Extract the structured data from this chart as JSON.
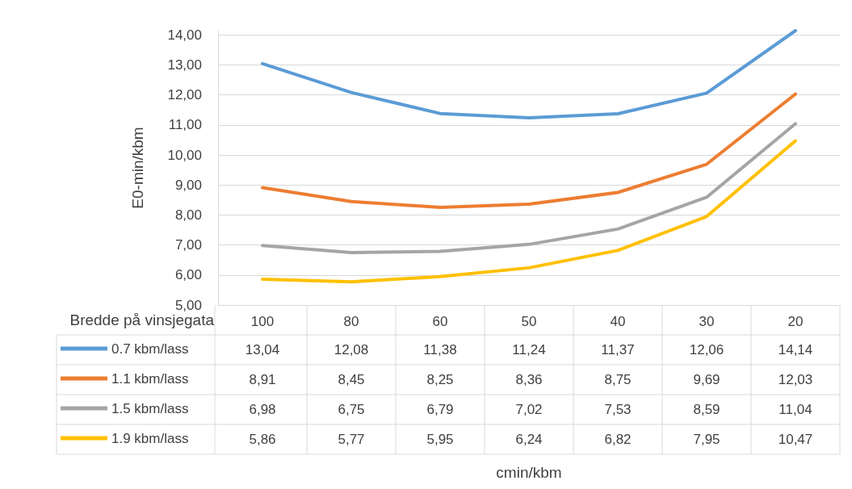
{
  "chart_data": {
    "type": "line",
    "annotations": [
      "cmin/kbm"
    ],
    "ylabel": "E0-min/kbm",
    "legend_title": "Bredde på vinsjegata",
    "categories": [
      "100",
      "80",
      "60",
      "50",
      "40",
      "30",
      "20"
    ],
    "series": [
      {
        "name": "0.7 kbm/lass",
        "color": "#5b9bd5",
        "values": [
          13.04,
          12.08,
          11.38,
          11.24,
          11.37,
          12.06,
          14.14
        ],
        "value_labels": [
          "13,04",
          "12,08",
          "11,38",
          "11,24",
          "11,37",
          "12,06",
          "14,14"
        ]
      },
      {
        "name": "1.1 kbm/lass",
        "color": "#ed7d31",
        "values": [
          8.91,
          8.45,
          8.25,
          8.36,
          8.75,
          9.69,
          12.03
        ],
        "value_labels": [
          "8,91",
          "8,45",
          "8,25",
          "8,36",
          "8,75",
          "9,69",
          "12,03"
        ]
      },
      {
        "name": "1.5 kbm/lass",
        "color": "#a5a5a5",
        "values": [
          6.98,
          6.75,
          6.79,
          7.02,
          7.53,
          8.59,
          11.04
        ],
        "value_labels": [
          "6,98",
          "6,75",
          "6,79",
          "7,02",
          "7,53",
          "8,59",
          "11,04"
        ]
      },
      {
        "name": "1.9 kbm/lass",
        "color": "#ffc000",
        "values": [
          5.86,
          5.77,
          5.95,
          6.24,
          6.82,
          7.95,
          10.47
        ],
        "value_labels": [
          "5,86",
          "5,77",
          "5,95",
          "6,24",
          "6,82",
          "7,95",
          "10,47"
        ]
      }
    ],
    "ylim": [
      5,
      14.14
    ],
    "yticks": [
      {
        "value": 5,
        "label": "5,00"
      },
      {
        "value": 6,
        "label": "6,00"
      },
      {
        "value": 7,
        "label": "7,00"
      },
      {
        "value": 8,
        "label": "8,00"
      },
      {
        "value": 9,
        "label": "9,00"
      },
      {
        "value": 10,
        "label": "10,00"
      },
      {
        "value": 11,
        "label": "11,00"
      },
      {
        "value": 12,
        "label": "12,00"
      },
      {
        "value": 13,
        "label": "13,00"
      },
      {
        "value": 14,
        "label": "14,00"
      }
    ],
    "grid": "y",
    "legend": "bottom left",
    "marker": "none",
    "line_style": "solid"
  }
}
